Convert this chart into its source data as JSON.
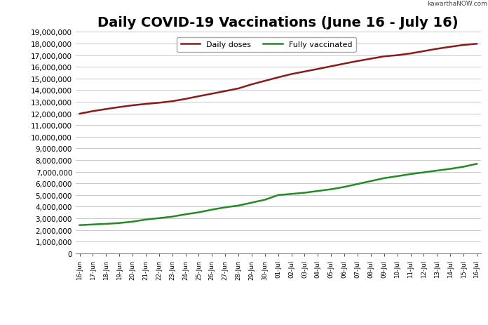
{
  "title": "Daily COVID-19 Vaccinations (June 16 - July 16)",
  "watermark": "kawarthaNOW.com",
  "dates": [
    "16-Jun",
    "17-Jun",
    "18-Jun",
    "19-Jun",
    "20-Jun",
    "21-Jun",
    "22-Jun",
    "23-Jun",
    "24-Jun",
    "25-Jun",
    "26-Jun",
    "27-Jun",
    "28-Jun",
    "29-Jun",
    "30-Jun",
    "01-Jul",
    "02-Jul",
    "03-Jul",
    "04-Jul",
    "05-Jul",
    "06-Jul",
    "07-Jul",
    "08-Jul",
    "09-Jul",
    "10-Jul",
    "11-Jul",
    "12-Jul",
    "13-Jul",
    "14-Jul",
    "15-Jul",
    "16-Jul"
  ],
  "daily_doses": [
    11980000,
    12200000,
    12380000,
    12550000,
    12700000,
    12820000,
    12920000,
    13050000,
    13250000,
    13480000,
    13700000,
    13920000,
    14150000,
    14500000,
    14800000,
    15100000,
    15380000,
    15600000,
    15820000,
    16050000,
    16280000,
    16500000,
    16700000,
    16900000,
    17000000,
    17150000,
    17350000,
    17550000,
    17720000,
    17880000,
    17980000
  ],
  "fully_vaccinated": [
    2420000,
    2480000,
    2530000,
    2600000,
    2720000,
    2900000,
    3020000,
    3150000,
    3350000,
    3520000,
    3750000,
    3950000,
    4100000,
    4350000,
    4600000,
    5000000,
    5100000,
    5200000,
    5350000,
    5500000,
    5700000,
    5950000,
    6200000,
    6450000,
    6620000,
    6800000,
    6950000,
    7100000,
    7250000,
    7430000,
    7680000
  ],
  "daily_doses_color": "#8B1A1A",
  "fully_vaccinated_color": "#228B22",
  "background_color": "#FFFFFF",
  "grid_color": "#C8C8C8",
  "ylim": [
    0,
    19000000
  ],
  "yticks": [
    0,
    1000000,
    2000000,
    3000000,
    4000000,
    5000000,
    6000000,
    7000000,
    8000000,
    9000000,
    10000000,
    11000000,
    12000000,
    13000000,
    14000000,
    15000000,
    16000000,
    17000000,
    18000000,
    19000000
  ],
  "legend_daily": "Daily doses",
  "legend_fully": "Fully vaccinated",
  "title_fontsize": 14
}
